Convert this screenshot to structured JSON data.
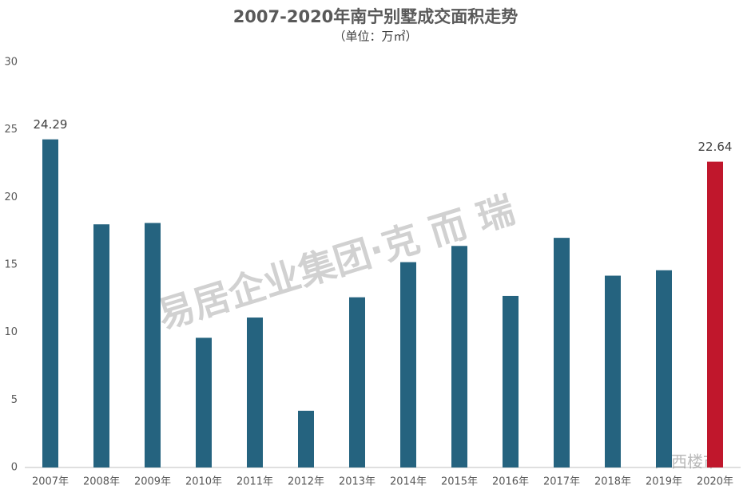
{
  "chart_data": {
    "type": "bar",
    "title": "2007-2020年南宁别墅成交面积走势",
    "subtitle": "（单位：万㎡）",
    "categories": [
      "2007年",
      "2008年",
      "2009年",
      "2010年",
      "2011年",
      "2012年",
      "2013年",
      "2014年",
      "2015年",
      "2016年",
      "2017年",
      "2018年",
      "2019年",
      "2020年"
    ],
    "values": [
      24.29,
      18.0,
      18.1,
      9.6,
      11.1,
      4.2,
      12.6,
      15.2,
      16.4,
      12.7,
      17.0,
      14.2,
      14.6,
      22.64
    ],
    "value_labels": [
      "24.29",
      null,
      null,
      null,
      null,
      null,
      null,
      null,
      null,
      null,
      null,
      null,
      null,
      "22.64"
    ],
    "colors": [
      "#25637f",
      "#25637f",
      "#25637f",
      "#25637f",
      "#25637f",
      "#25637f",
      "#25637f",
      "#25637f",
      "#25637f",
      "#25637f",
      "#25637f",
      "#25637f",
      "#25637f",
      "#c0172c"
    ],
    "ylim": [
      0,
      30
    ],
    "yticks": [
      0,
      5,
      10,
      15,
      20,
      25,
      30
    ],
    "grid": false,
    "watermarks": [
      "易居企业集团·克 而 瑞",
      "广西楼市"
    ]
  }
}
